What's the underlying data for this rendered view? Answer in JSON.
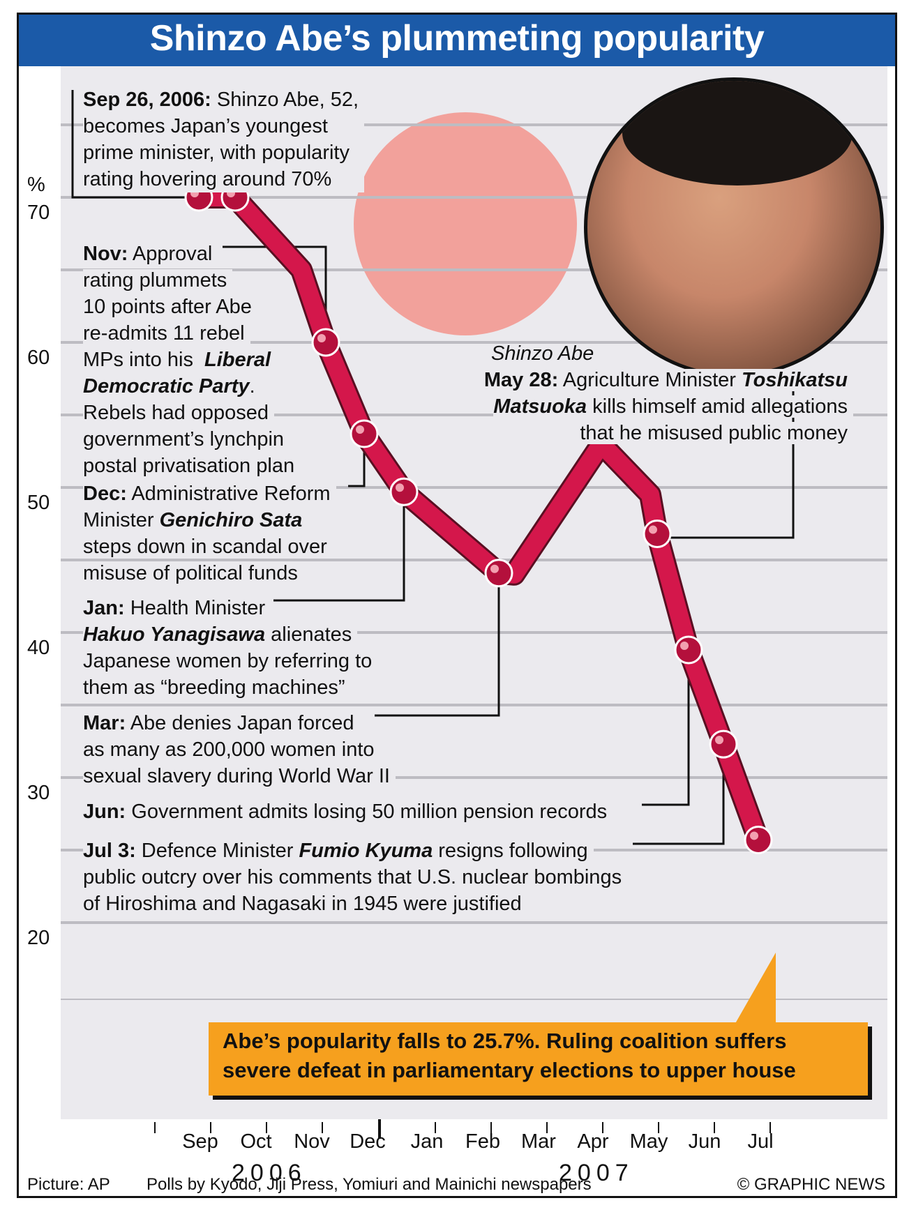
{
  "title": "Shinzo Abe’s plummeting popularity",
  "photo": {
    "caption": "Shinzo Abe",
    "subject": "portrait photo",
    "flag_color": "#f2a19b"
  },
  "colors": {
    "title_bar": "#1b5aa8",
    "line": "#d4174b",
    "callout": "#f6a01e",
    "plot_bg": "#ebeaee"
  },
  "annotations": {
    "sep": {
      "lead": "Sep 26, 2006:",
      "lines": [
        " Shinzo Abe, 52,",
        "becomes Japan’s youngest",
        "prime minister, with popularity",
        "rating hovering around 70%"
      ]
    },
    "nov": {
      "lead": "Nov:",
      "l1": " Approval",
      "l2": "rating plummets",
      "l3": "10 points after Abe",
      "l4": "re-admits 11 rebel",
      "l5a": "MPs into his ",
      "l5b": "Liberal",
      "l6a": "Democratic Party",
      "l6b": ".",
      "l7": "Rebels had opposed",
      "l8": "government’s lynchpin",
      "l9": "postal privatisation plan"
    },
    "dec": {
      "lead": "Dec:",
      "l1": " Administrative Reform",
      "l2a": "Minister ",
      "l2b": "Genichiro Sata",
      "l3": "steps down in scandal over",
      "l4": "misuse of political funds"
    },
    "jan": {
      "lead": "Jan:",
      "l1": " Health Minister",
      "l2a": "Hakuo Yanagisawa",
      "l2b": " alienates",
      "l3": "Japanese women by referring to",
      "l4": "them as “breeding machines”"
    },
    "mar": {
      "lead": "Mar:",
      "l1": " Abe denies Japan forced",
      "l2": "as many as 200,000 women into",
      "l3": "sexual slavery during World War II"
    },
    "jun": {
      "lead": "Jun:",
      "l1": " Government admits losing 50 million pension records"
    },
    "jul": {
      "lead": "Jul 3:",
      "l1a": " Defence Minister ",
      "l1b": "Fumio Kyuma",
      "l1c": " resigns following",
      "l2": "public outcry over his comments that U.S. nuclear bombings",
      "l3": "of Hiroshima and Nagasaki in 1945 were justified"
    },
    "may": {
      "lead": "May 28:",
      "l1a": " Agriculture Minister ",
      "l1b": "Toshikatsu",
      "l2a": "Matsuoka",
      "l2b": " kills himself amid allegations",
      "l3": "that he misused public money"
    }
  },
  "callout": {
    "l1": "Abe’s popularity falls to 25.7%. Ruling coalition suffers",
    "l2": "severe defeat in parliamentary elections to upper house"
  },
  "footer": {
    "picture": "Picture: AP",
    "source": "Polls by Kyodo, Jiji Press, Yomiuri and Mainichi newspapers",
    "credit": "© GRAPHIC NEWS"
  },
  "chart_data": {
    "type": "line",
    "title": "Shinzo Abe’s plummeting popularity",
    "ylabel": "%",
    "ylim": [
      15,
      75
    ],
    "yticks": [
      20,
      30,
      40,
      50,
      60,
      70
    ],
    "x_categories": [
      "Sep",
      "Oct",
      "Nov",
      "Dec",
      "Jan",
      "Feb",
      "Mar",
      "Apr",
      "May",
      "Jun",
      "Jul"
    ],
    "year_labels": [
      "2006",
      "2007"
    ],
    "grid": true,
    "series": [
      {
        "values": [
          {
            "x": "2006-09-26",
            "y": 70
          },
          {
            "x": "2006-10",
            "y": 70
          },
          {
            "x": "2006-10 late",
            "y": 65
          },
          {
            "x": "2006-11",
            "y": 60
          },
          {
            "x": "2006-12",
            "y": 53.7
          },
          {
            "x": "2007-01",
            "y": 49.7
          },
          {
            "x": "2007-03",
            "y": 44.1
          },
          {
            "x": "2007-03 end",
            "y": 44
          },
          {
            "x": "2007-04 end",
            "y": 53
          },
          {
            "x": "2007-05 mid",
            "y": 49.5
          },
          {
            "x": "2007-05-28",
            "y": 46.8
          },
          {
            "x": "2007-06",
            "y": 38.8
          },
          {
            "x": "2007-06 end",
            "y": 32.3
          },
          {
            "x": "2007-07-03",
            "y": 25.7
          }
        ],
        "markers": [
          70,
          70,
          60,
          53.7,
          49.7,
          44.1,
          46.8,
          38.8,
          32.3,
          25.7
        ]
      }
    ]
  }
}
